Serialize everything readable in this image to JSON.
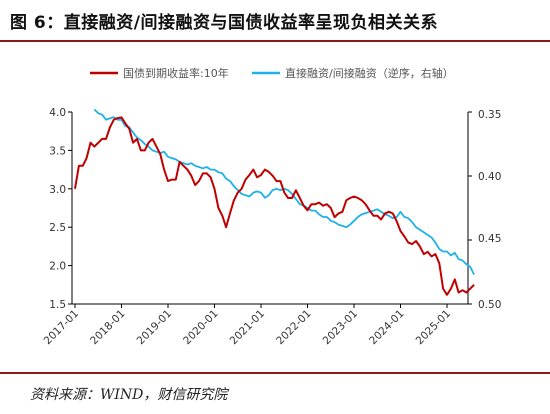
{
  "title": "图 6：直接融资/间接融资与国债收益率呈现负相关关系",
  "source": "资料来源：WIND，财信研究院",
  "colors": {
    "bond": "#c00000",
    "ratio": "#1fb2e6",
    "frame": "#8b1a1a"
  },
  "chart_data": {
    "type": "line",
    "legend_position": "top",
    "grid": false,
    "x_ticks": [
      "2017-01",
      "2018-01",
      "2019-01",
      "2020-01",
      "2021-01",
      "2022-01",
      "2023-01",
      "2024-01",
      "2025-01"
    ],
    "y_left": {
      "ticks": [
        "4.0",
        "3.5",
        "3.0",
        "2.5",
        "2.0",
        "1.5"
      ],
      "range": [
        1.5,
        4.0
      ]
    },
    "y_right": {
      "ticks": [
        "0.35",
        "0.40",
        "0.45",
        "0.50"
      ],
      "range": [
        0.35,
        0.5
      ],
      "inverted": true
    },
    "series": [
      {
        "name": "国债到期收益率:10年",
        "axis": "left",
        "points": [
          [
            "2017-01",
            3.0
          ],
          [
            "2017-02",
            3.3
          ],
          [
            "2017-03",
            3.3
          ],
          [
            "2017-04",
            3.4
          ],
          [
            "2017-05",
            3.6
          ],
          [
            "2017-06",
            3.55
          ],
          [
            "2017-07",
            3.6
          ],
          [
            "2017-08",
            3.65
          ],
          [
            "2017-09",
            3.65
          ],
          [
            "2017-10",
            3.8
          ],
          [
            "2017-11",
            3.9
          ],
          [
            "2017-12",
            3.92
          ],
          [
            "2018-01",
            3.93
          ],
          [
            "2018-02",
            3.85
          ],
          [
            "2018-03",
            3.78
          ],
          [
            "2018-04",
            3.6
          ],
          [
            "2018-05",
            3.65
          ],
          [
            "2018-06",
            3.5
          ],
          [
            "2018-07",
            3.5
          ],
          [
            "2018-08",
            3.6
          ],
          [
            "2018-09",
            3.65
          ],
          [
            "2018-10",
            3.55
          ],
          [
            "2018-11",
            3.45
          ],
          [
            "2018-12",
            3.25
          ],
          [
            "2019-01",
            3.1
          ],
          [
            "2019-02",
            3.12
          ],
          [
            "2019-03",
            3.12
          ],
          [
            "2019-04",
            3.35
          ],
          [
            "2019-05",
            3.3
          ],
          [
            "2019-06",
            3.25
          ],
          [
            "2019-07",
            3.17
          ],
          [
            "2019-08",
            3.05
          ],
          [
            "2019-09",
            3.1
          ],
          [
            "2019-10",
            3.2
          ],
          [
            "2019-11",
            3.2
          ],
          [
            "2019-12",
            3.15
          ],
          [
            "2020-01",
            3.0
          ],
          [
            "2020-02",
            2.75
          ],
          [
            "2020-03",
            2.65
          ],
          [
            "2020-04",
            2.5
          ],
          [
            "2020-05",
            2.68
          ],
          [
            "2020-06",
            2.85
          ],
          [
            "2020-07",
            2.95
          ],
          [
            "2020-08",
            3.0
          ],
          [
            "2020-09",
            3.12
          ],
          [
            "2020-10",
            3.18
          ],
          [
            "2020-11",
            3.25
          ],
          [
            "2020-12",
            3.15
          ],
          [
            "2021-01",
            3.18
          ],
          [
            "2021-02",
            3.25
          ],
          [
            "2021-03",
            3.22
          ],
          [
            "2021-04",
            3.17
          ],
          [
            "2021-05",
            3.1
          ],
          [
            "2021-06",
            3.1
          ],
          [
            "2021-07",
            2.95
          ],
          [
            "2021-08",
            2.88
          ],
          [
            "2021-09",
            2.88
          ],
          [
            "2021-10",
            2.98
          ],
          [
            "2021-11",
            2.88
          ],
          [
            "2021-12",
            2.78
          ],
          [
            "2022-01",
            2.72
          ],
          [
            "2022-02",
            2.8
          ],
          [
            "2022-03",
            2.8
          ],
          [
            "2022-04",
            2.82
          ],
          [
            "2022-05",
            2.78
          ],
          [
            "2022-06",
            2.8
          ],
          [
            "2022-07",
            2.75
          ],
          [
            "2022-08",
            2.63
          ],
          [
            "2022-09",
            2.68
          ],
          [
            "2022-10",
            2.7
          ],
          [
            "2022-11",
            2.85
          ],
          [
            "2022-12",
            2.88
          ],
          [
            "2023-01",
            2.9
          ],
          [
            "2023-02",
            2.88
          ],
          [
            "2023-03",
            2.85
          ],
          [
            "2023-04",
            2.8
          ],
          [
            "2023-05",
            2.72
          ],
          [
            "2023-06",
            2.65
          ],
          [
            "2023-07",
            2.65
          ],
          [
            "2023-08",
            2.6
          ],
          [
            "2023-09",
            2.68
          ],
          [
            "2023-10",
            2.7
          ],
          [
            "2023-11",
            2.68
          ],
          [
            "2023-12",
            2.58
          ],
          [
            "2024-01",
            2.45
          ],
          [
            "2024-02",
            2.38
          ],
          [
            "2024-03",
            2.3
          ],
          [
            "2024-04",
            2.28
          ],
          [
            "2024-05",
            2.32
          ],
          [
            "2024-06",
            2.25
          ],
          [
            "2024-07",
            2.15
          ],
          [
            "2024-08",
            2.18
          ],
          [
            "2024-09",
            2.12
          ],
          [
            "2024-10",
            2.15
          ],
          [
            "2024-11",
            2.03
          ],
          [
            "2024-12",
            1.7
          ],
          [
            "2025-01",
            1.62
          ],
          [
            "2025-02",
            1.7
          ],
          [
            "2025-03",
            1.82
          ],
          [
            "2025-04",
            1.65
          ],
          [
            "2025-05",
            1.68
          ],
          [
            "2025-06",
            1.65
          ],
          [
            "2025-07",
            1.7
          ],
          [
            "2025-08",
            1.75
          ]
        ]
      },
      {
        "name": "直接融资/间接融资（逆序，右轴）",
        "axis": "right",
        "points": [
          [
            "2017-06",
            0.348
          ],
          [
            "2017-07",
            0.351
          ],
          [
            "2017-08",
            0.352
          ],
          [
            "2017-09",
            0.356
          ],
          [
            "2017-10",
            0.355
          ],
          [
            "2017-11",
            0.354
          ],
          [
            "2017-12",
            0.356
          ],
          [
            "2018-01",
            0.356
          ],
          [
            "2018-02",
            0.361
          ],
          [
            "2018-03",
            0.362
          ],
          [
            "2018-04",
            0.366
          ],
          [
            "2018-05",
            0.37
          ],
          [
            "2018-06",
            0.372
          ],
          [
            "2018-07",
            0.375
          ],
          [
            "2018-08",
            0.377
          ],
          [
            "2018-09",
            0.38
          ],
          [
            "2018-10",
            0.381
          ],
          [
            "2018-11",
            0.382
          ],
          [
            "2018-12",
            0.381
          ],
          [
            "2019-01",
            0.385
          ],
          [
            "2019-02",
            0.386
          ],
          [
            "2019-03",
            0.387
          ],
          [
            "2019-04",
            0.389
          ],
          [
            "2019-05",
            0.39
          ],
          [
            "2019-06",
            0.391
          ],
          [
            "2019-07",
            0.39
          ],
          [
            "2019-08",
            0.392
          ],
          [
            "2019-09",
            0.393
          ],
          [
            "2019-10",
            0.394
          ],
          [
            "2019-11",
            0.393
          ],
          [
            "2019-12",
            0.395
          ],
          [
            "2020-01",
            0.395
          ],
          [
            "2020-02",
            0.397
          ],
          [
            "2020-03",
            0.398
          ],
          [
            "2020-04",
            0.402
          ],
          [
            "2020-05",
            0.404
          ],
          [
            "2020-06",
            0.408
          ],
          [
            "2020-07",
            0.411
          ],
          [
            "2020-08",
            0.414
          ],
          [
            "2020-09",
            0.415
          ],
          [
            "2020-10",
            0.416
          ],
          [
            "2020-11",
            0.413
          ],
          [
            "2020-12",
            0.412
          ],
          [
            "2021-01",
            0.413
          ],
          [
            "2021-02",
            0.417
          ],
          [
            "2021-03",
            0.415
          ],
          [
            "2021-04",
            0.411
          ],
          [
            "2021-05",
            0.41
          ],
          [
            "2021-06",
            0.411
          ],
          [
            "2021-07",
            0.41
          ],
          [
            "2021-08",
            0.411
          ],
          [
            "2021-09",
            0.414
          ],
          [
            "2021-10",
            0.418
          ],
          [
            "2021-11",
            0.422
          ],
          [
            "2021-12",
            0.423
          ],
          [
            "2022-01",
            0.425
          ],
          [
            "2022-02",
            0.427
          ],
          [
            "2022-03",
            0.427
          ],
          [
            "2022-04",
            0.43
          ],
          [
            "2022-05",
            0.432
          ],
          [
            "2022-06",
            0.432
          ],
          [
            "2022-07",
            0.435
          ],
          [
            "2022-08",
            0.436
          ],
          [
            "2022-09",
            0.438
          ],
          [
            "2022-10",
            0.439
          ],
          [
            "2022-11",
            0.44
          ],
          [
            "2022-12",
            0.438
          ],
          [
            "2023-01",
            0.435
          ],
          [
            "2023-02",
            0.432
          ],
          [
            "2023-03",
            0.43
          ],
          [
            "2023-04",
            0.429
          ],
          [
            "2023-05",
            0.428
          ],
          [
            "2023-06",
            0.427
          ],
          [
            "2023-07",
            0.426
          ],
          [
            "2023-08",
            0.428
          ],
          [
            "2023-09",
            0.43
          ],
          [
            "2023-10",
            0.431
          ],
          [
            "2023-11",
            0.433
          ],
          [
            "2023-12",
            0.432
          ],
          [
            "2024-01",
            0.428
          ],
          [
            "2024-02",
            0.432
          ],
          [
            "2024-03",
            0.433
          ],
          [
            "2024-04",
            0.436
          ],
          [
            "2024-05",
            0.44
          ],
          [
            "2024-06",
            0.442
          ],
          [
            "2024-07",
            0.444
          ],
          [
            "2024-08",
            0.446
          ],
          [
            "2024-09",
            0.448
          ],
          [
            "2024-10",
            0.452
          ],
          [
            "2024-11",
            0.457
          ],
          [
            "2024-12",
            0.459
          ],
          [
            "2025-01",
            0.459
          ],
          [
            "2025-02",
            0.462
          ],
          [
            "2025-03",
            0.46
          ],
          [
            "2025-04",
            0.465
          ],
          [
            "2025-05",
            0.466
          ],
          [
            "2025-06",
            0.469
          ],
          [
            "2025-07",
            0.471
          ],
          [
            "2025-08",
            0.477
          ]
        ]
      }
    ]
  }
}
